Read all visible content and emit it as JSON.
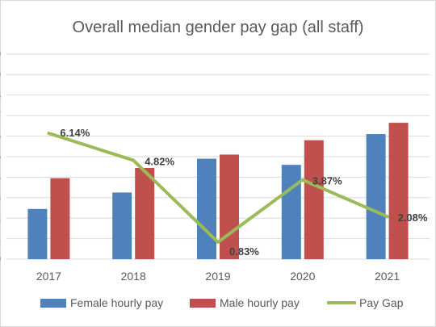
{
  "chart_data": {
    "type": "bar",
    "title": "Overall median gender pay gap (all staff)",
    "xlabel": "",
    "ylabel": "",
    "categories": [
      "2017",
      "2018",
      "2019",
      "2020",
      "2021"
    ],
    "series": [
      {
        "name": "Female hourly pay",
        "type": "bar",
        "color": "#4f81bd",
        "values": [
          2.45,
          3.25,
          4.9,
          4.6,
          6.1
        ]
      },
      {
        "name": "Male hourly pay",
        "type": "bar",
        "color": "#c0504d",
        "values": [
          3.95,
          4.45,
          5.1,
          5.8,
          6.65
        ]
      },
      {
        "name": "Pay Gap",
        "type": "line",
        "color": "#9bbb59",
        "values": [
          6.14,
          4.82,
          0.83,
          3.87,
          2.08
        ],
        "labels": [
          "6.14%",
          "4.82%",
          "0.83%",
          "3.87%",
          "2.08%"
        ]
      }
    ],
    "ylim": [
      0,
      10
    ],
    "yticks": [
      0,
      1,
      2,
      3,
      4,
      5,
      6,
      7,
      8,
      9,
      10
    ],
    "grid": true,
    "legend": "bottom"
  }
}
